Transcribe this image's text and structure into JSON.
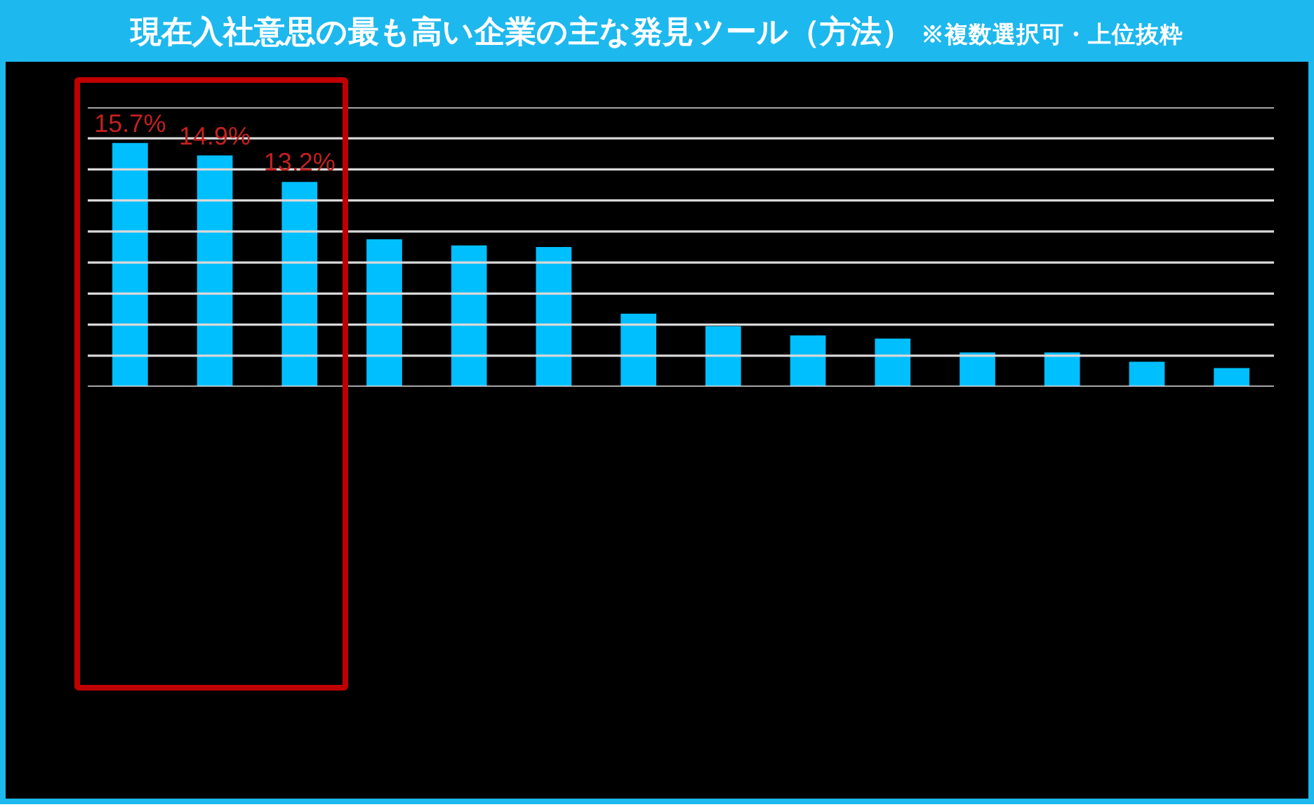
{
  "chart_data": {
    "type": "bar",
    "title": "現在入社意思の最も高い企業の主な発見ツール（方法）",
    "subtitle": "※複数選択可・上位抜粋",
    "categories": [
      null,
      null,
      null,
      null,
      null,
      null,
      null,
      null,
      null,
      null,
      null,
      null,
      null,
      null
    ],
    "values": [
      15.7,
      14.9,
      13.2,
      9.5,
      9.1,
      9.0,
      4.7,
      3.9,
      3.3,
      3.1,
      2.2,
      2.2,
      1.6,
      1.2
    ],
    "color": "#00bfff",
    "value_labels": [
      "15.7%",
      "14.9%",
      "13.2%",
      null,
      null,
      null,
      null,
      null,
      null,
      null,
      null,
      null,
      null,
      null
    ],
    "ylim": [
      0,
      18
    ],
    "yticks": [
      {
        "value": 0,
        "label": null
      },
      {
        "value": 2,
        "label": null
      },
      {
        "value": 4,
        "label": null
      },
      {
        "value": 6,
        "label": null
      },
      {
        "value": 8,
        "label": null
      },
      {
        "value": 10,
        "label": null
      },
      {
        "value": 12,
        "label": null
      },
      {
        "value": 14,
        "label": null
      },
      {
        "value": 16,
        "label": null
      },
      {
        "value": 18,
        "label": null
      }
    ],
    "grid": "y",
    "tick_labels": false
  }
}
